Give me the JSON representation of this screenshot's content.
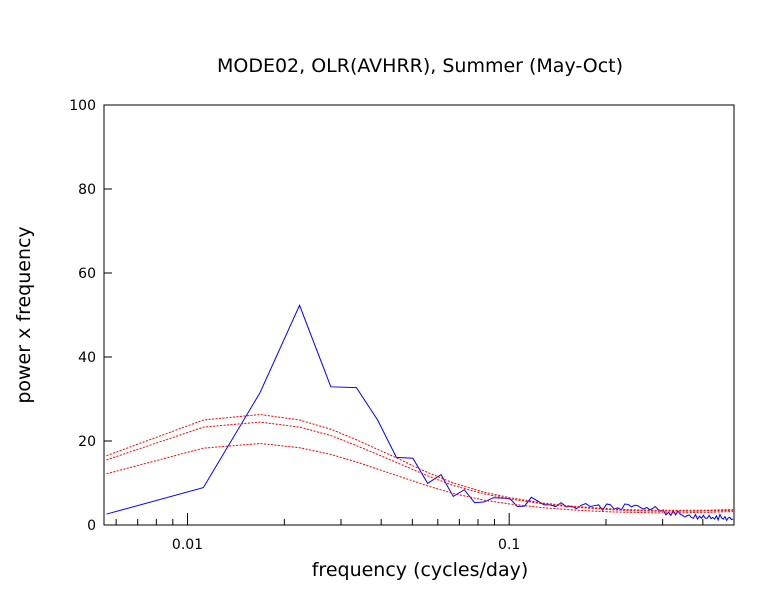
{
  "chart_data": {
    "type": "line",
    "title": "MODE02, OLR(AVHRR), Summer (May-Oct)",
    "xlabel": "frequency (cycles/day)",
    "ylabel": "power x frequency",
    "xscale": "log",
    "xlim": [
      0.0055,
      0.5
    ],
    "ylim": [
      0,
      100
    ],
    "yticks": [
      0,
      20,
      40,
      60,
      80,
      100
    ],
    "xticks": [
      {
        "value": 0.01,
        "label": "0.01"
      },
      {
        "value": 0.1,
        "label": "0.1"
      }
    ],
    "grid": false,
    "series": [
      {
        "color": "#0000ff",
        "style": "solid",
        "x": [
          0.0056,
          0.0112,
          0.0168,
          0.0223,
          0.0279,
          0.0335,
          0.039,
          0.0446,
          0.0502,
          0.0558,
          0.0614,
          0.067,
          0.0725,
          0.0781,
          0.0837,
          0.0893,
          0.0949,
          0.1004,
          0.106,
          0.1116,
          0.1172,
          0.1228,
          0.1283,
          0.1339,
          0.1395,
          0.1451,
          0.1507,
          0.1563,
          0.1618,
          0.1674,
          0.173,
          0.1786,
          0.1842,
          0.1897,
          0.1953,
          0.2009,
          0.2065,
          0.2121,
          0.2176,
          0.2232,
          0.2288,
          0.2344,
          0.24,
          0.2455,
          0.2511,
          0.2567,
          0.2623,
          0.2679,
          0.2734,
          0.279,
          0.2846,
          0.2902,
          0.2958,
          0.3013,
          0.3069,
          0.3125,
          0.3181,
          0.3237,
          0.3292,
          0.3348,
          0.3404,
          0.346,
          0.3516,
          0.3571,
          0.3627,
          0.3683,
          0.3739,
          0.3795,
          0.385,
          0.3906,
          0.3962,
          0.4018,
          0.4074,
          0.4129,
          0.4185,
          0.4241,
          0.4297,
          0.4353,
          0.4408,
          0.4464,
          0.452,
          0.4576,
          0.4632,
          0.4687,
          0.4743,
          0.4799,
          0.4855,
          0.4911,
          0.4966
        ],
        "y": [
          2.6,
          8.9,
          31.5,
          52.3,
          32.9,
          32.7,
          25.0,
          16.1,
          15.9,
          9.9,
          12.0,
          6.8,
          8.4,
          5.3,
          5.5,
          6.5,
          6.4,
          6.3,
          4.4,
          4.5,
          6.6,
          5.7,
          4.8,
          4.8,
          4.4,
          5.3,
          4.3,
          4.5,
          3.9,
          4.7,
          5.1,
          4.4,
          4.6,
          4.8,
          3.5,
          5.0,
          4.8,
          3.8,
          4.1,
          3.6,
          5.0,
          4.9,
          4.3,
          4.7,
          4.6,
          4.1,
          3.8,
          4.2,
          3.6,
          3.9,
          4.4,
          3.7,
          3.3,
          3.6,
          2.4,
          3.0,
          2.3,
          3.4,
          2.4,
          3.3,
          2.5,
          2.3,
          1.9,
          2.2,
          2.4,
          1.8,
          1.6,
          2.5,
          1.4,
          2.1,
          1.6,
          2.3,
          1.6,
          1.6,
          2.3,
          1.5,
          1.8,
          1.4,
          2.2,
          1.2,
          2.5,
          1.7,
          1.4,
          2.0,
          1.1,
          1.7,
          1.8,
          1.3,
          1.4
        ]
      },
      {
        "color": "#ff0000",
        "style": "dotted",
        "x": [
          0.0056,
          0.0112,
          0.0168,
          0.0223,
          0.0279,
          0.0335,
          0.039,
          0.0446,
          0.0502,
          0.0558,
          0.067,
          0.0837,
          0.1004,
          0.1283,
          0.1563,
          0.1842,
          0.2121,
          0.2455,
          0.279,
          0.3125,
          0.346,
          0.3795,
          0.4129,
          0.4464,
          0.4966
        ],
        "y": [
          16.5,
          25.0,
          26.3,
          25.0,
          22.8,
          20.3,
          18.0,
          16.0,
          14.1,
          12.5,
          10.0,
          7.8,
          6.5,
          5.2,
          4.5,
          4.1,
          3.8,
          3.6,
          3.5,
          3.5,
          3.5,
          3.5,
          3.5,
          3.6,
          3.7
        ]
      },
      {
        "color": "#ff0000",
        "style": "dotted",
        "x": [
          0.0056,
          0.0112,
          0.0168,
          0.0223,
          0.0279,
          0.0335,
          0.039,
          0.0446,
          0.0502,
          0.0558,
          0.067,
          0.0837,
          0.1004,
          0.1283,
          0.1563,
          0.1842,
          0.2121,
          0.2455,
          0.279,
          0.3125,
          0.346,
          0.3795,
          0.4129,
          0.4464,
          0.4966
        ],
        "y": [
          15.5,
          23.3,
          24.5,
          23.3,
          21.3,
          18.9,
          16.8,
          14.9,
          13.2,
          11.7,
          9.4,
          7.4,
          6.2,
          5.0,
          4.3,
          3.9,
          3.6,
          3.4,
          3.3,
          3.3,
          3.3,
          3.3,
          3.4,
          3.4,
          3.5
        ]
      },
      {
        "color": "#ff0000",
        "style": "dotted",
        "x": [
          0.0056,
          0.0112,
          0.0168,
          0.0223,
          0.0279,
          0.0335,
          0.039,
          0.0446,
          0.0502,
          0.0558,
          0.067,
          0.0837,
          0.1004,
          0.1283,
          0.1563,
          0.1842,
          0.2121,
          0.2455,
          0.279,
          0.3125,
          0.346,
          0.3795,
          0.4129,
          0.4464,
          0.4966
        ],
        "y": [
          12.2,
          18.3,
          19.4,
          18.4,
          16.8,
          15.0,
          13.3,
          11.8,
          10.5,
          9.3,
          7.5,
          5.9,
          5.0,
          4.1,
          3.6,
          3.3,
          3.1,
          3.0,
          2.9,
          2.9,
          2.9,
          3.0,
          3.0,
          3.1,
          3.2
        ]
      }
    ]
  }
}
